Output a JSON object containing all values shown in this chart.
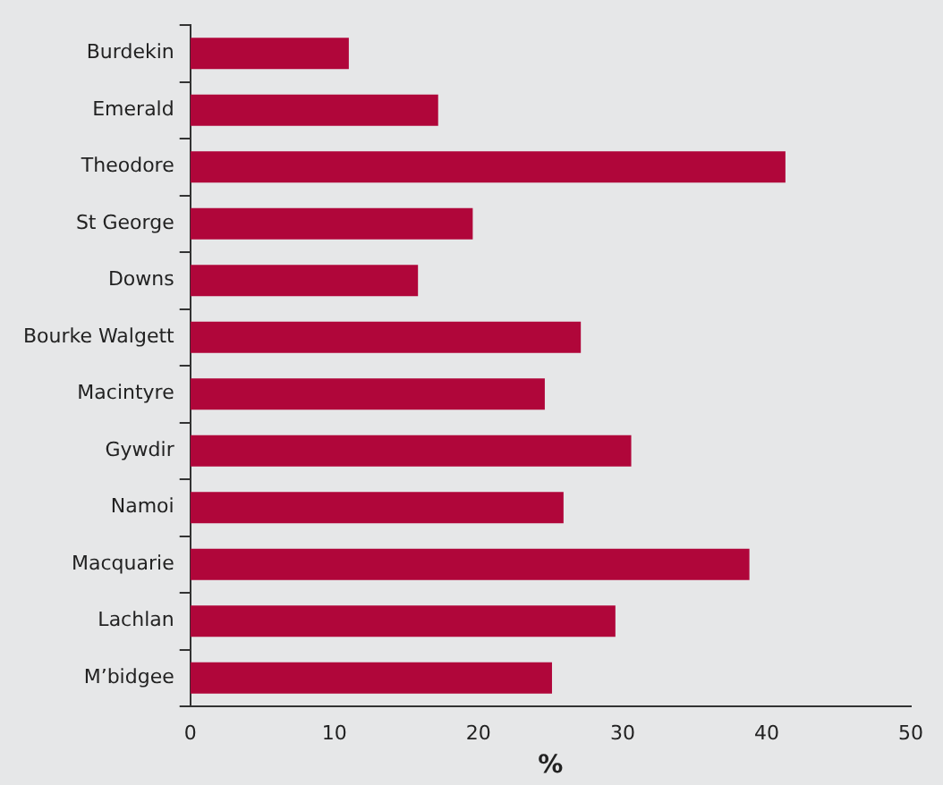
{
  "chart_data": {
    "type": "bar",
    "orientation": "horizontal",
    "xlabel": "%",
    "categories": [
      "Burdekin",
      "Emerald",
      "Theodore",
      "St George",
      "Downs",
      "Bourke Walgett",
      "Macintyre",
      "Gywdir",
      "Namoi",
      "Macquarie",
      "Lachlan",
      "M’bidgee"
    ],
    "values": [
      11.0,
      17.2,
      41.3,
      19.6,
      15.8,
      27.1,
      24.6,
      30.6,
      25.9,
      38.8,
      29.5,
      25.1
    ],
    "color": "#b0063a",
    "xlim": [
      0,
      50
    ],
    "xticks": [
      0,
      10,
      20,
      30,
      40,
      50
    ],
    "grid": false,
    "legend": false
  }
}
